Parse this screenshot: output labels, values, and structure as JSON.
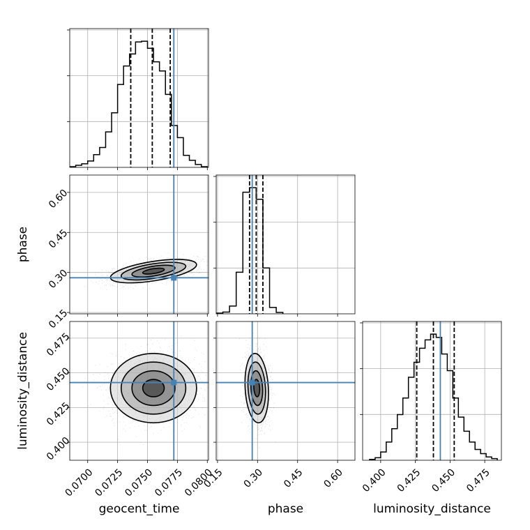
{
  "chart_data": {
    "type": "corner",
    "parameters": [
      "geocent_time",
      "phase",
      "luminosity_distance"
    ],
    "truths": {
      "geocent_time": 0.0772,
      "phase": 0.28,
      "luminosity_distance": 0.443
    },
    "truth_color": "#4682b4",
    "ranges": {
      "geocent_time": [
        0.0685,
        0.0801
      ],
      "phase": [
        0.145,
        0.665
      ],
      "luminosity_distance": [
        0.387,
        0.487
      ]
    },
    "ticks": {
      "geocent_time": {
        "values": [
          0.07,
          0.0725,
          0.075,
          0.0775,
          0.08
        ],
        "labels": [
          "0.0700",
          "0.0725",
          "0.0750",
          "0.0775",
          "0.0800"
        ]
      },
      "phase": {
        "values": [
          0.15,
          0.3,
          0.45,
          0.6
        ],
        "labels": [
          "0.15",
          "0.30",
          "0.45",
          "0.60"
        ]
      },
      "luminosity_distance": {
        "values": [
          0.4,
          0.425,
          0.45,
          0.475
        ],
        "labels": [
          "0.400",
          "0.425",
          "0.450",
          "0.475"
        ]
      }
    },
    "quantiles": {
      "geocent_time": [
        0.0736,
        0.0754,
        0.0769
      ],
      "phase": [
        0.27,
        0.295,
        0.32
      ],
      "luminosity_distance": [
        0.426,
        0.438,
        0.453
      ]
    },
    "histograms": {
      "geocent_time": {
        "edges": [
          0.0685,
          0.069,
          0.0695,
          0.07,
          0.0705,
          0.071,
          0.0715,
          0.072,
          0.0725,
          0.073,
          0.0735,
          0.074,
          0.0745,
          0.075,
          0.0755,
          0.076,
          0.0765,
          0.077,
          0.0775,
          0.078,
          0.0785,
          0.079,
          0.0795,
          0.08
        ],
        "counts": [
          1,
          3,
          5,
          9,
          18,
          28,
          50,
          77,
          117,
          143,
          160,
          177,
          178,
          168,
          149,
          136,
          103,
          59,
          42,
          17,
          10,
          4,
          1
        ]
      },
      "phase": {
        "edges": [
          0.145,
          0.17,
          0.195,
          0.22,
          0.245,
          0.27,
          0.295,
          0.32,
          0.345,
          0.37,
          0.395
        ],
        "counts": [
          2,
          5,
          22,
          118,
          345,
          358,
          325,
          130,
          18,
          4
        ]
      },
      "luminosity_distance": {
        "edges": [
          0.392,
          0.396,
          0.4,
          0.404,
          0.408,
          0.412,
          0.416,
          0.42,
          0.424,
          0.428,
          0.432,
          0.436,
          0.44,
          0.444,
          0.448,
          0.452,
          0.456,
          0.46,
          0.464,
          0.468,
          0.472,
          0.476,
          0.48,
          0.484
        ],
        "counts": [
          1,
          3,
          10,
          22,
          38,
          55,
          75,
          100,
          118,
          135,
          145,
          152,
          148,
          128,
          108,
          75,
          52,
          35,
          22,
          13,
          8,
          4,
          2
        ]
      }
    },
    "samples_2d": [
      {
        "x": "geocent_time",
        "y": "phase",
        "mean": [
          0.0755,
          0.305
        ],
        "sd": [
          0.0018,
          0.022
        ],
        "rho": 0.55,
        "contours_sigma": [
          0.5,
          1.0,
          1.5,
          2.0
        ]
      },
      {
        "x": "geocent_time",
        "y": "luminosity_distance",
        "mean": [
          0.0755,
          0.439
        ],
        "sd": [
          0.0018,
          0.0125
        ],
        "rho": 0.0,
        "contours_sigma": [
          0.5,
          1.0,
          1.5,
          2.0
        ]
      },
      {
        "x": "phase",
        "y": "luminosity_distance",
        "mean": [
          0.297,
          0.439
        ],
        "sd": [
          0.022,
          0.0125
        ],
        "rho": -0.15,
        "contours_sigma": [
          0.5,
          1.0,
          1.5,
          2.0
        ]
      }
    ]
  }
}
